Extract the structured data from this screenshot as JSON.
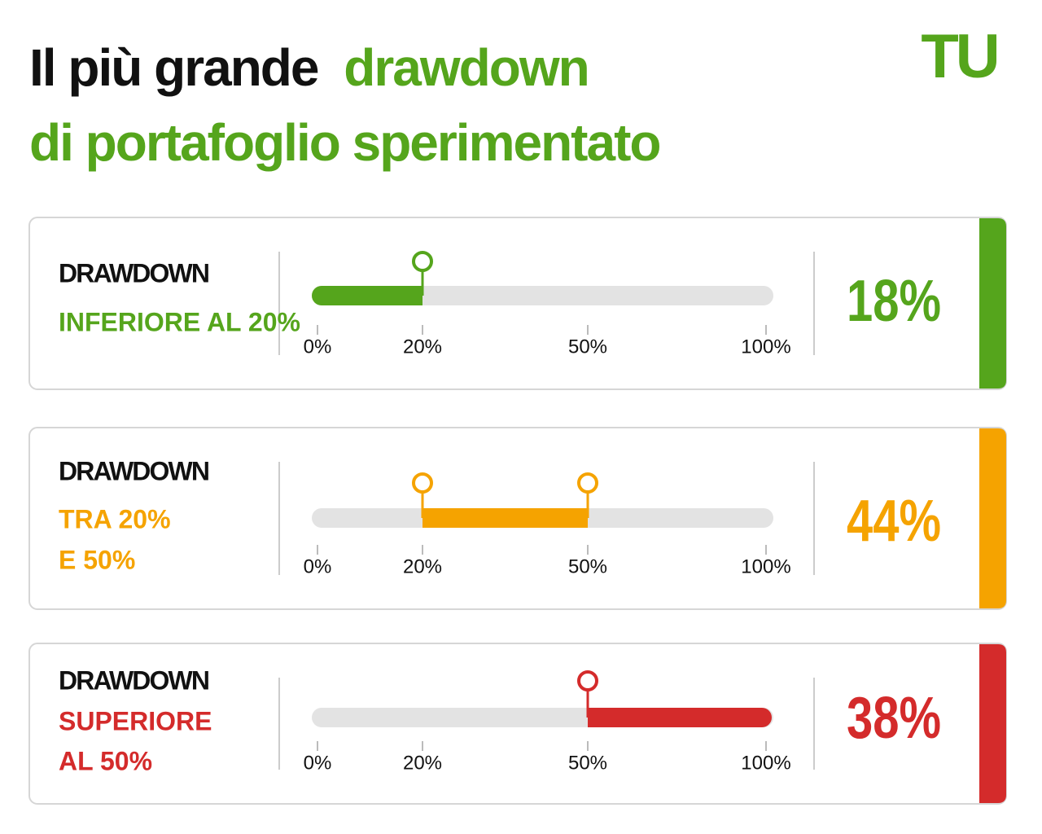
{
  "header": {
    "title_part1": "Il più grande",
    "title_highlight": "drawdown",
    "title_line2": "di portafoglio sperimentato",
    "logo": "TU"
  },
  "scale": {
    "ticks": [
      {
        "value": 0,
        "label": "0%"
      },
      {
        "value": 20,
        "label": "20%"
      },
      {
        "value": 50,
        "label": "50%"
      },
      {
        "value": 100,
        "label": "100%"
      }
    ]
  },
  "rows": [
    {
      "label": "DRAWDOWN",
      "sublabel": [
        "INFERIORE AL 20%"
      ],
      "color": "#55a51c",
      "range": [
        0,
        20
      ],
      "share": "18%"
    },
    {
      "label": "DRAWDOWN",
      "sublabel": [
        "TRA 20%",
        "E 50%"
      ],
      "color": "#f5a300",
      "range": [
        20,
        50
      ],
      "share": "44%"
    },
    {
      "label": "DRAWDOWN",
      "sublabel": [
        "SUPERIORE",
        "AL 50%"
      ],
      "color": "#d42b2b",
      "range": [
        50,
        100
      ],
      "share": "38%"
    }
  ]
}
